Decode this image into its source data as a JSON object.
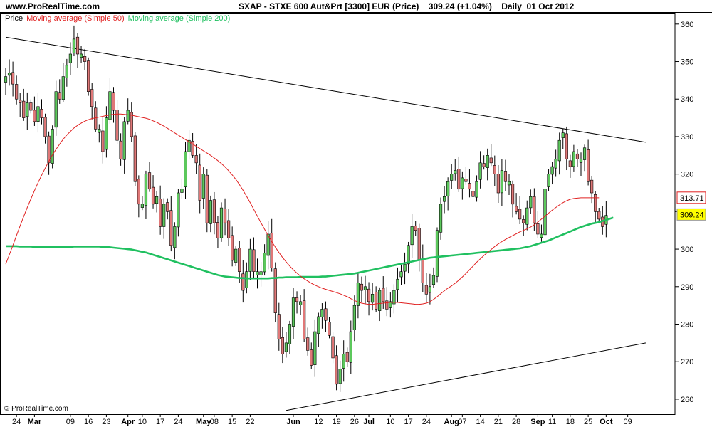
{
  "header": {
    "site": "www.ProRealTime.com",
    "title": "SXAP - STXE 600 Aut&Prt [3300] EUR (Price)",
    "last": "309.24",
    "change": "(+1.04%)",
    "period": "Daily",
    "date": "01 Oct 2012"
  },
  "legend": {
    "price": "Price",
    "ma50": "Moving average (Simple 50)",
    "ma200": "Moving average (Simple 200)"
  },
  "watermark": "© ProRealTime.com",
  "colors": {
    "up": "#5cc85c",
    "down": "#e07878",
    "ma50": "#e02020",
    "ma200": "#20c060",
    "trend": "#000000",
    "last_bg": "#ffff00",
    "ma50_box": "#ffffff"
  },
  "chart_data": {
    "type": "candlestick",
    "ylim": [
      256,
      363
    ],
    "y_ticks": [
      260,
      270,
      280,
      290,
      300,
      310,
      320,
      330,
      340,
      350,
      360
    ],
    "x_ticks": [
      {
        "label": "24",
        "bold": false,
        "bar": 3
      },
      {
        "label": "Mar",
        "bold": true,
        "bar": 8
      },
      {
        "label": "09",
        "bold": false,
        "bar": 18
      },
      {
        "label": "16",
        "bold": false,
        "bar": 23
      },
      {
        "label": "23",
        "bold": false,
        "bar": 28
      },
      {
        "label": "Apr",
        "bold": true,
        "bar": 34
      },
      {
        "label": "10",
        "bold": false,
        "bar": 38
      },
      {
        "label": "17",
        "bold": false,
        "bar": 43
      },
      {
        "label": "24",
        "bold": false,
        "bar": 48
      },
      {
        "label": "May",
        "bold": true,
        "bar": 55
      },
      {
        "label": "08",
        "bold": false,
        "bar": 58
      },
      {
        "label": "15",
        "bold": false,
        "bar": 63
      },
      {
        "label": "22",
        "bold": false,
        "bar": 68
      },
      {
        "label": "Jun",
        "bold": true,
        "bar": 80
      },
      {
        "label": "12",
        "bold": false,
        "bar": 87
      },
      {
        "label": "19",
        "bold": false,
        "bar": 92
      },
      {
        "label": "26",
        "bold": false,
        "bar": 97
      },
      {
        "label": "Jul",
        "bold": true,
        "bar": 101
      },
      {
        "label": "10",
        "bold": false,
        "bar": 107
      },
      {
        "label": "17",
        "bold": false,
        "bar": 112
      },
      {
        "label": "24",
        "bold": false,
        "bar": 117
      },
      {
        "label": "Aug",
        "bold": true,
        "bar": 124
      },
      {
        "label": "07",
        "bold": false,
        "bar": 127
      },
      {
        "label": "14",
        "bold": false,
        "bar": 132
      },
      {
        "label": "21",
        "bold": false,
        "bar": 137
      },
      {
        "label": "28",
        "bold": false,
        "bar": 142
      },
      {
        "label": "Sep",
        "bold": true,
        "bar": 148
      },
      {
        "label": "11",
        "bold": false,
        "bar": 152
      },
      {
        "label": "18",
        "bold": false,
        "bar": 157
      },
      {
        "label": "25",
        "bold": false,
        "bar": 162
      },
      {
        "label": "Oct",
        "bold": true,
        "bar": 167
      },
      {
        "label": "09",
        "bold": false,
        "bar": 173
      }
    ],
    "closes": [
      346,
      347,
      344,
      340,
      339,
      335,
      339,
      337,
      334,
      338,
      335,
      330,
      323,
      332,
      342,
      340,
      346,
      349,
      352,
      356,
      352,
      352,
      350,
      342,
      338,
      332,
      332,
      326,
      335,
      342,
      337,
      329,
      324,
      334,
      337,
      330,
      318,
      312,
      312,
      320,
      316,
      312,
      314,
      306,
      312,
      310,
      301,
      306,
      315,
      316,
      326,
      329,
      325,
      323,
      313,
      320,
      307,
      313,
      307,
      303,
      311,
      307,
      303,
      297,
      300,
      294,
      289,
      294,
      300,
      294,
      294,
      294,
      299,
      304,
      295,
      283,
      276,
      272,
      275,
      280,
      287,
      286,
      286,
      276,
      273,
      269,
      278,
      282,
      284,
      281,
      277,
      271,
      264,
      268,
      272,
      270,
      278,
      285,
      291,
      289,
      290,
      286,
      288,
      284,
      289,
      286,
      284,
      286,
      289,
      292,
      294,
      296,
      301,
      306,
      305,
      297,
      291,
      288,
      290,
      293,
      305,
      312,
      314,
      318,
      320,
      321,
      316,
      319,
      318,
      316,
      314,
      318,
      323,
      322,
      325,
      323,
      320,
      315,
      321,
      318,
      318,
      312,
      310,
      308,
      307,
      311,
      314,
      307,
      304,
      304,
      316,
      320,
      322,
      324,
      329,
      331,
      324,
      322,
      326,
      324,
      324,
      327,
      318,
      315,
      310,
      308,
      306,
      309
    ],
    "ma50": [
      296,
      298.5,
      301,
      303.6,
      306.2,
      308.7,
      311.1,
      313.4,
      315.6,
      317.7,
      319.7,
      321.6,
      323.4,
      325.1,
      326.6,
      328,
      329.3,
      330.4,
      331.4,
      332.3,
      333,
      333.6,
      334.1,
      334.5,
      334.8,
      335,
      335.2,
      335.4,
      335.6,
      335.8,
      335.9,
      336,
      336,
      335.9,
      335.8,
      335.7,
      335.5,
      335.3,
      335.1,
      334.9,
      334.6,
      334.2,
      333.8,
      333.3,
      332.8,
      332.2,
      331.6,
      331,
      330.4,
      329.8,
      329.2,
      328.6,
      328,
      327.4,
      326.8,
      326.2,
      325.6,
      325,
      324.3,
      323.6,
      322.8,
      321.9,
      320.9,
      319.8,
      318.6,
      317.2,
      315.7,
      314.1,
      312.4,
      310.6,
      308.8,
      307,
      305.3,
      303.6,
      302,
      300.5,
      299.1,
      297.8,
      296.6,
      295.5,
      294.5,
      293.6,
      292.8,
      292.1,
      291.5,
      290.9,
      290.4,
      290,
      289.6,
      289.3,
      289,
      288.7,
      288.4,
      288.1,
      287.7,
      287.3,
      286.8,
      286.3,
      285.9,
      285.6,
      285.4,
      285.3,
      285.3,
      285.4,
      285.5,
      285.6,
      285.7,
      285.8,
      285.8,
      285.8,
      285.7,
      285.6,
      285.5,
      285.4,
      285.3,
      285.3,
      285.4,
      285.6,
      286,
      286.6,
      287.3,
      288.1,
      288.9,
      289.6,
      290.2,
      290.9,
      291.7,
      292.6,
      293.5,
      294.5,
      295.5,
      296.5,
      297.4,
      298.3,
      299.1,
      299.9,
      300.7,
      301.4,
      302,
      302.6,
      303.1,
      303.6,
      304.1,
      304.6,
      305,
      305.4,
      305.9,
      306.5,
      307.2,
      308,
      308.8,
      309.6,
      310.4,
      311.1,
      311.8,
      312.4,
      312.9,
      313.3,
      313.5,
      313.6,
      313.7,
      313.7,
      313.7,
      313.7,
      313.7,
      313.7
    ],
    "ma200": [
      300.8,
      300.8,
      300.8,
      300.8,
      300.7,
      300.7,
      300.7,
      300.7,
      300.6,
      300.6,
      300.6,
      300.6,
      300.6,
      300.6,
      300.6,
      300.6,
      300.6,
      300.6,
      300.6,
      300.7,
      300.7,
      300.7,
      300.7,
      300.7,
      300.7,
      300.7,
      300.7,
      300.6,
      300.6,
      300.5,
      300.4,
      300.3,
      300.2,
      300.1,
      300,
      299.9,
      299.7,
      299.5,
      299.3,
      299.1,
      298.8,
      298.5,
      298.2,
      297.9,
      297.6,
      297.3,
      297,
      296.7,
      296.4,
      296.1,
      295.8,
      295.5,
      295.2,
      294.9,
      294.6,
      294.3,
      294,
      293.7,
      293.4,
      293.1,
      292.9,
      292.7,
      292.6,
      292.5,
      292.4,
      292.3,
      292.3,
      292.2,
      292.2,
      292.2,
      292.2,
      292.2,
      292.2,
      292.2,
      292.3,
      292.3,
      292.4,
      292.4,
      292.5,
      292.5,
      292.5,
      292.5,
      292.6,
      292.6,
      292.6,
      292.6,
      292.6,
      292.6,
      292.7,
      292.7,
      292.8,
      292.9,
      293,
      293.1,
      293.2,
      293.3,
      293.4,
      293.5,
      293.7,
      293.9,
      294.1,
      294.3,
      294.5,
      294.7,
      294.9,
      295.1,
      295.3,
      295.5,
      295.7,
      295.9,
      296.1,
      296.3,
      296.5,
      296.7,
      296.9,
      297.1,
      297.3,
      297.5,
      297.7,
      297.8,
      297.9,
      298,
      298.1,
      298.2,
      298.3,
      298.4,
      298.5,
      298.6,
      298.7,
      298.8,
      298.9,
      299,
      299.1,
      299.2,
      299.3,
      299.4,
      299.5,
      299.6,
      299.7,
      299.8,
      299.9,
      300,
      300.1,
      300.2,
      300.4,
      300.6,
      300.8,
      301.1,
      301.4,
      301.7,
      302,
      302.3,
      302.7,
      303.1,
      303.5,
      303.9,
      304.3,
      304.7,
      305.1,
      305.5,
      305.9,
      306.2,
      306.5,
      306.8,
      307,
      307.2,
      307.5,
      307.8,
      308.1,
      308.4
    ],
    "trendlines": [
      {
        "from": {
          "bar": 0,
          "y": 356.5
        },
        "to": {
          "bar": 178,
          "y": 328.5
        }
      },
      {
        "from": {
          "bar": 78,
          "y": 257
        },
        "to": {
          "bar": 178,
          "y": 275
        }
      }
    ],
    "ma50_last": "313.71",
    "last_price": "309.24"
  }
}
